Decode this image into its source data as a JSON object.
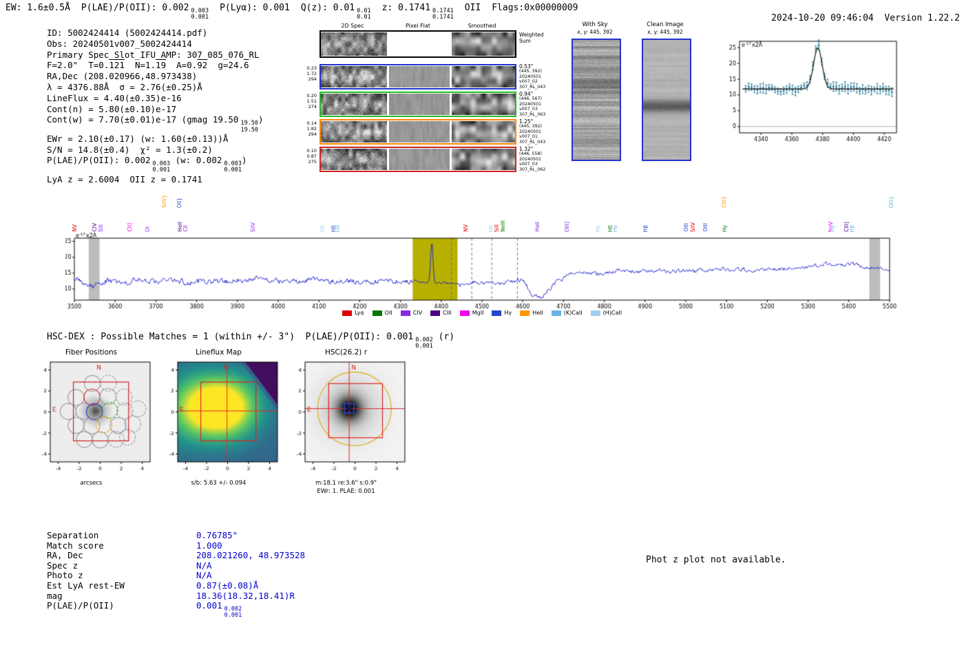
{
  "meta": {
    "datetime": "2024-10-20 09:46:04",
    "version": "Version 1.22.2"
  },
  "header": {
    "segments": [
      {
        "text": "EW: 1.6±0.5Å"
      },
      {
        "text": "P(LAE)/P(OII): 0.002",
        "sup": "0.003",
        "sub": "0.001"
      },
      {
        "text": "P(Lyα): 0.001"
      },
      {
        "text": "Q(z): 0.01",
        "sup": "0.01",
        "sub": "0.01"
      },
      {
        "text": "z: 0.1741",
        "sup": "0.1741",
        "sub": "0.1741"
      },
      {
        "text": "OII"
      },
      {
        "text": "Flags:0x00000009"
      }
    ]
  },
  "info": {
    "lines": [
      [
        {
          "t": "ID: 5002424414 (5002424414.pdf)"
        }
      ],
      [
        {
          "t": "Obs: 20240501v007_5002424414"
        }
      ],
      [
        {
          "t": "Primary Spec_Slot_IFU_AMP: 307_085_076_RL"
        }
      ],
      [
        {
          "t": "F=2.0\"  T=0."
        },
        {
          "t": "121",
          "ov": true
        },
        {
          "t": "  N=1."
        },
        {
          "t": "19",
          "ov": true
        },
        {
          "t": "  A=0."
        },
        {
          "t": "92",
          "ov": true
        },
        {
          "t": "  g=24."
        },
        {
          "t": "6",
          "ov": true
        }
      ],
      [
        {
          "t": "RA,Dec (208.020966,48.973438)"
        }
      ],
      [
        {
          "t": "λ = 4376.88Å  σ = 2.76(±0.25)Å"
        }
      ],
      [
        {
          "t": "LineFlux = 4.40(±0.35)e-16"
        }
      ],
      [
        {
          "t": "Cont(n) = 5.80(±0.10)e-17"
        }
      ],
      [
        {
          "t": "Cont(w) = 7.70(±0.01)e-17 (gmag 19.50"
        },
        {
          "fr": [
            "19.50",
            "19.50"
          ]
        },
        {
          "t": ")"
        }
      ],
      [
        {
          "t": "EWr = 2.10(±0.17) (w: 1.60(±0.13))Å"
        }
      ],
      [
        {
          "t": "S/N = 14.8(±0.4)  χ² = 1.3(±0.2)"
        }
      ],
      [
        {
          "t": "P(LAE)/P(OII): 0.002"
        },
        {
          "fr": [
            "0.003",
            "0.001"
          ]
        },
        {
          "t": " (w: 0.002"
        },
        {
          "fr": [
            "0.003",
            "0.001"
          ]
        },
        {
          "t": ")"
        }
      ],
      [
        {
          "t": "LyA z = 2.6004  OII z = 0.1741"
        }
      ]
    ]
  },
  "spec2d": {
    "col_titles": [
      "2D Spec",
      "Pixel Flat",
      "Smoothed"
    ],
    "weighted_sum_label": "Weighted Sum",
    "rows": [
      {
        "color": "#2233cc",
        "left": [
          "0.23",
          "1.72",
          "294"
        ],
        "right": [
          "0.53\"",
          "(445, 392)",
          "20240501",
          "v007_02",
          "307_RL_043"
        ]
      },
      {
        "color": "#22bb22",
        "left": [
          "0.20",
          "1.51",
          "274"
        ],
        "right": [
          "0.94\"",
          "(446, 567)",
          "20240501",
          "v007_03",
          "307_RL_063"
        ]
      },
      {
        "color": "#ff8800",
        "left": [
          "0.14",
          "1.82",
          "294"
        ],
        "right": [
          "1.25\"",
          "(445, 392)",
          "20240501",
          "v007_01",
          "307_RL_043"
        ]
      },
      {
        "color": "#cc2222",
        "left": [
          "0.10",
          "0.87",
          "275"
        ],
        "right": [
          "1.32\"",
          "(446, 558)",
          "20240501",
          "v007_03",
          "307_RL_062"
        ]
      }
    ]
  },
  "cutouts": {
    "with_sky": {
      "title": "With Sky",
      "coords": "x, y: 445, 392"
    },
    "clean": {
      "title": "Clean Image",
      "coords": "x, y: 445, 392"
    }
  },
  "hscdex": {
    "prefix": "HSC-DEX : Possible Matches = 1 (within +/- 3\")  P(LAE)/P(OII): 0.001",
    "sup": "0.002",
    "sub": "0.001",
    "suffix": " (r)"
  },
  "panels": {
    "fiber": {
      "title": "Fiber Positions",
      "xlabel": "arcsecs"
    },
    "lineflux": {
      "title": "Lineflux Map",
      "xlabel": "s/b: 5.63 +/- 0.094"
    },
    "hsc": {
      "title": "HSC(26.2) r",
      "xlabel": "m:18.1 re:3.6\" s:0.9\"",
      "xlabel2": "EWr: 1. PLAE: 0.001"
    }
  },
  "match_table": {
    "rows": [
      {
        "label": "Separation",
        "value": "0.76785\""
      },
      {
        "label": "Match score",
        "value": "1.000"
      },
      {
        "label": "RA, Dec",
        "value": "208.021260, 48.973528"
      },
      {
        "label": "Spec z",
        "value": "N/A"
      },
      {
        "label": "Photo z",
        "value": "N/A"
      },
      {
        "label": "Est LyA rest-EW",
        "value": "0.87(±0.08)Å"
      },
      {
        "label": "mag",
        "value": "18.36(18.32,18.41)R"
      },
      {
        "label": "P(LAE)/P(OII)",
        "value": "0.001",
        "sup": "0.002",
        "sub": "0.001"
      }
    ]
  },
  "photz_note": "Phot z plot not available.",
  "chart_data": [
    {
      "name": "zoom_spectrum",
      "type": "line",
      "ylabel": "e-17x2Å",
      "xlim": [
        4326,
        4428
      ],
      "ylim": [
        -2,
        27
      ],
      "xticks": [
        4340,
        4360,
        4380,
        4400,
        4420
      ],
      "yticks": [
        0,
        5,
        10,
        15,
        20,
        25
      ],
      "fit": {
        "center": 4376.88,
        "sigma": 2.76,
        "peak": 25.0,
        "baseline": 11.9
      },
      "points": {
        "x_start": 4330,
        "x_end": 4425,
        "step": 1.9,
        "baseline": 11.9,
        "noise": 1.0,
        "errorbar": 1.2
      },
      "colors": {
        "points": "#2a7f9e",
        "fit": "#222222",
        "zero_line": "#b0b0b0"
      }
    },
    {
      "name": "full_spectrum",
      "type": "line",
      "ylabel": "e-17x2Å",
      "xlim": [
        3500,
        5500
      ],
      "ylim": [
        6.5,
        26
      ],
      "xticks": [
        3500,
        3600,
        3700,
        3800,
        3900,
        4000,
        4100,
        4200,
        4300,
        4400,
        4500,
        4600,
        4700,
        4800,
        4900,
        5000,
        5100,
        5200,
        5300,
        5400,
        5500
      ],
      "yticks": [
        10,
        15,
        20,
        25
      ],
      "line_color": "#1414cc",
      "noise_amplitude": 1.4,
      "emission_peak": {
        "center": 4376.88,
        "sigma": 2.76,
        "peak": 25
      },
      "highlight_band": {
        "x": [
          4330,
          4440
        ],
        "color": "#b7b000"
      },
      "sky_absorption_bands": [
        [
          3535,
          3562
        ],
        [
          5450,
          5477
        ]
      ],
      "dashed_lines": [
        4425,
        4475,
        4524,
        4587
      ],
      "control_points": [
        [
          3500,
          13.2
        ],
        [
          3540,
          10.8
        ],
        [
          3580,
          12.6
        ],
        [
          3620,
          12.0
        ],
        [
          3660,
          13.0
        ],
        [
          3700,
          12.2
        ],
        [
          3740,
          12.8
        ],
        [
          3780,
          12.0
        ],
        [
          3820,
          12.6
        ],
        [
          3860,
          12.2
        ],
        [
          3900,
          12.8
        ],
        [
          3940,
          13.2
        ],
        [
          3980,
          12.4
        ],
        [
          4020,
          12.2
        ],
        [
          4060,
          12.6
        ],
        [
          4100,
          13.4
        ],
        [
          4140,
          12.2
        ],
        [
          4180,
          12.6
        ],
        [
          4220,
          12.2
        ],
        [
          4260,
          12.4
        ],
        [
          4300,
          12.6
        ],
        [
          4340,
          12.4
        ],
        [
          4360,
          12.2
        ],
        [
          4390,
          12.0
        ],
        [
          4420,
          11.8
        ],
        [
          4450,
          11.6
        ],
        [
          4480,
          12.2
        ],
        [
          4510,
          11.8
        ],
        [
          4540,
          11.6
        ],
        [
          4570,
          12.4
        ],
        [
          4600,
          12.6
        ],
        [
          4625,
          8.0
        ],
        [
          4645,
          7.2
        ],
        [
          4665,
          10.0
        ],
        [
          4690,
          13.0
        ],
        [
          4720,
          14.6
        ],
        [
          4750,
          15.2
        ],
        [
          4780,
          14.8
        ],
        [
          4810,
          15.4
        ],
        [
          4840,
          15.8
        ],
        [
          4870,
          15.2
        ],
        [
          4900,
          15.6
        ],
        [
          4930,
          15.8
        ],
        [
          4960,
          15.4
        ],
        [
          4990,
          15.8
        ],
        [
          5020,
          15.6
        ],
        [
          5050,
          16.0
        ],
        [
          5080,
          16.4
        ],
        [
          5110,
          16.0
        ],
        [
          5140,
          16.2
        ],
        [
          5170,
          15.8
        ],
        [
          5200,
          16.4
        ],
        [
          5230,
          16.0
        ],
        [
          5260,
          16.6
        ],
        [
          5290,
          16.8
        ],
        [
          5320,
          17.2
        ],
        [
          5350,
          18.0
        ],
        [
          5380,
          17.4
        ],
        [
          5410,
          17.8
        ],
        [
          5440,
          17.0
        ],
        [
          5470,
          16.6
        ],
        [
          5500,
          16.2
        ]
      ],
      "markers": [
        {
          "label": "NV",
          "wave": 3502,
          "color": "#dd0000",
          "tier": 2
        },
        {
          "label": "CIV",
          "wave": 3551,
          "color": "#4b0082",
          "tier": 2
        },
        {
          "label": "SiII",
          "wave": 3566,
          "color": "#8a2be2",
          "tier": 2
        },
        {
          "label": "CII]",
          "wave": 3637,
          "color": "#ee00ee",
          "tier": 2
        },
        {
          "label": "OI",
          "wave": 3680,
          "color": "#8a2be2",
          "tier": 2
        },
        {
          "label": "SiIV}",
          "wave": 3721,
          "color": "#ff9500",
          "tier": 1
        },
        {
          "label": "OII}",
          "wave": 3758,
          "color": "#2244cc",
          "tier": 1
        },
        {
          "label": "HeII",
          "wave": 3760,
          "color": "#4b0082",
          "tier": 2
        },
        {
          "label": "CII",
          "wave": 3773,
          "color": "#8a2be2",
          "tier": 2
        },
        {
          "label": "SiIV",
          "wave": 3940,
          "color": "#8a2be2",
          "tier": 2
        },
        {
          "label": "OII",
          "wave": 4109,
          "color": "#9fd0f0",
          "tier": 2
        },
        {
          "label": "Hδ",
          "wave": 4136,
          "color": "#2244cc",
          "tier": 2
        },
        {
          "label": "OII",
          "wave": 4147,
          "color": "#6ab4e8",
          "tier": 2
        },
        {
          "label": "NV",
          "wave": 4461,
          "color": "#dd0000",
          "tier": 2
        },
        {
          "label": "Hδ",
          "wave": 4523,
          "color": "#9fd0f0",
          "tier": 2
        },
        {
          "label": "SiII",
          "wave": 4538,
          "color": "#dd0000",
          "tier": 2
        },
        {
          "label": "NeIII",
          "wave": 4552,
          "color": "#007700",
          "tier": 2
        },
        {
          "label": "HeII",
          "wave": 4637,
          "color": "#8a2be2",
          "tier": 2
        },
        {
          "label": "OIII]",
          "wave": 4710,
          "color": "#8a2be2",
          "tier": 2
        },
        {
          "label": "Hγ",
          "wave": 4786,
          "color": "#9fd0f0",
          "tier": 2
        },
        {
          "label": "Hδ",
          "wave": 4816,
          "color": "#007700",
          "tier": 2
        },
        {
          "label": "Hγ",
          "wave": 4828,
          "color": "#6ab4e8",
          "tier": 2
        },
        {
          "label": "Hβ",
          "wave": 4902,
          "color": "#2244cc",
          "tier": 2
        },
        {
          "label": "OIII",
          "wave": 5001,
          "color": "#2244cc",
          "tier": 2
        },
        {
          "label": "SiIV",
          "wave": 5018,
          "color": "#dd0000",
          "tier": 2
        },
        {
          "label": "OIII",
          "wave": 5049,
          "color": "#2244cc",
          "tier": 2
        },
        {
          "label": "CIII}",
          "wave": 5095,
          "color": "#ff9500",
          "tier": 1
        },
        {
          "label": "Hγ",
          "wave": 5097,
          "color": "#007700",
          "tier": 2
        },
        {
          "label": "NeV",
          "wave": 5357,
          "color": "#ee00ee",
          "tier": 2
        },
        {
          "label": "Hβ",
          "wave": 5361,
          "color": "#9fd0f0",
          "tier": 2
        },
        {
          "label": "CIII]",
          "wave": 5396,
          "color": "#4b0082",
          "tier": 2
        },
        {
          "label": "Hβ",
          "wave": 5408,
          "color": "#6ab4e8",
          "tier": 2
        },
        {
          "label": "OIII}",
          "wave": 5505,
          "color": "#6ab4e8",
          "tier": 1
        }
      ],
      "legend": [
        {
          "label": "Lyα",
          "color": "#dd0000"
        },
        {
          "label": "OII",
          "color": "#007700"
        },
        {
          "label": "CIV",
          "color": "#8a2be2"
        },
        {
          "label": "CIII",
          "color": "#4b0082"
        },
        {
          "label": "MgII",
          "color": "#ee00ee"
        },
        {
          "label": "Hγ",
          "color": "#2244cc"
        },
        {
          "label": "HeII",
          "color": "#ff9500"
        },
        {
          "label": "(K)CaII",
          "color": "#6ab4e8"
        },
        {
          "label": "(H)CaII",
          "color": "#9fd0f0"
        }
      ]
    },
    {
      "name": "fiber_positions",
      "type": "scatter",
      "title": "Fiber Positions",
      "xlabel": "arcsecs",
      "xlim": [
        -4.75,
        4.75
      ],
      "ylim": [
        -4.75,
        4.75
      ],
      "xticks": [
        -4,
        -2,
        0,
        2,
        4
      ],
      "yticks": [
        -4,
        -2,
        0,
        2,
        4
      ],
      "fiber_radius_arcsec": 0.76,
      "ifu_box": [
        -2.55,
        -2.75,
        2.7,
        2.85
      ],
      "fibers": [
        {
          "x": -0.75,
          "y": 2.72
        },
        {
          "x": 0.78,
          "y": 2.75,
          "dashed": true
        },
        {
          "x": -2.3,
          "y": 1.38
        },
        {
          "x": -0.78,
          "y": 1.42,
          "color": "red"
        },
        {
          "x": 0.75,
          "y": 1.48
        },
        {
          "x": 2.28,
          "y": 1.42,
          "dashed": true
        },
        {
          "x": -3.05,
          "y": 0.05
        },
        {
          "x": -1.55,
          "y": 0.08
        },
        {
          "x": -0.55,
          "y": 0.02,
          "color": "blue"
        },
        {
          "x": 0.9,
          "y": 0.15,
          "color": "green",
          "dashed": true
        },
        {
          "x": 2.35,
          "y": 0.1,
          "dashed": true
        },
        {
          "x": 3.6,
          "y": 0.3,
          "dashed": true
        },
        {
          "x": -2.3,
          "y": -1.28
        },
        {
          "x": -0.8,
          "y": -1.32
        },
        {
          "x": 0.35,
          "y": -1.22,
          "color": "orange",
          "dashed": true
        },
        {
          "x": 1.7,
          "y": -1.28
        },
        {
          "x": 3.1,
          "y": -1.15,
          "dashed": true
        },
        {
          "x": -1.5,
          "y": -2.62
        },
        {
          "x": 0.0,
          "y": -2.66
        },
        {
          "x": 1.52,
          "y": -2.6,
          "dashed": true
        },
        {
          "x": 2.6,
          "y": -2.4,
          "dashed": true
        }
      ],
      "compass": {
        "n": "N",
        "e": "E",
        "color": "#cc2222"
      }
    },
    {
      "name": "lineflux_map",
      "type": "heatmap",
      "title": "Lineflux Map",
      "xlabel": "s/b: 5.63 +/- 0.094",
      "xlim": [
        -4.75,
        4.75
      ],
      "ylim": [
        -4.75,
        4.75
      ],
      "xticks": [
        -4,
        -2,
        0,
        2,
        4
      ],
      "yticks": [
        -4,
        -2,
        0,
        2,
        4
      ],
      "colormap": "viridis",
      "blob_center": [
        -0.9,
        0.45
      ],
      "crosshair": [
        -0.05,
        0.1
      ],
      "ifu_box": [
        -2.55,
        -2.75,
        2.7,
        2.85
      ],
      "compass": {
        "n": "N",
        "e": "E",
        "color": "#cc2222"
      }
    },
    {
      "name": "hsc_cutout",
      "type": "heatmap",
      "title": "HSC(26.2) r",
      "xlabel": "m:18.1 re:3.6\" s:0.9\"",
      "xlabel2": "EWr: 1. PLAE: 0.001",
      "xlim": [
        -4.75,
        4.75
      ],
      "ylim": [
        -4.75,
        4.75
      ],
      "xticks": [
        -4,
        -2,
        0,
        2,
        4
      ],
      "yticks": [
        -4,
        -2,
        0,
        2,
        4
      ],
      "galaxy_center": [
        -0.55,
        0.35
      ],
      "aperture_circle": {
        "center": [
          -0.05,
          0.3
        ],
        "radius": 3.5,
        "color": "#d9b62a"
      },
      "catalog_box": {
        "center": [
          -0.55,
          0.35
        ],
        "half": 0.45,
        "color": "#2244dd"
      },
      "ifu_box": [
        -2.5,
        -2.45,
        2.62,
        2.7
      ],
      "crosshair": [
        -0.55,
        0.32
      ],
      "compass": {
        "n": "N",
        "e": "E",
        "color": "#cc2222"
      }
    }
  ]
}
